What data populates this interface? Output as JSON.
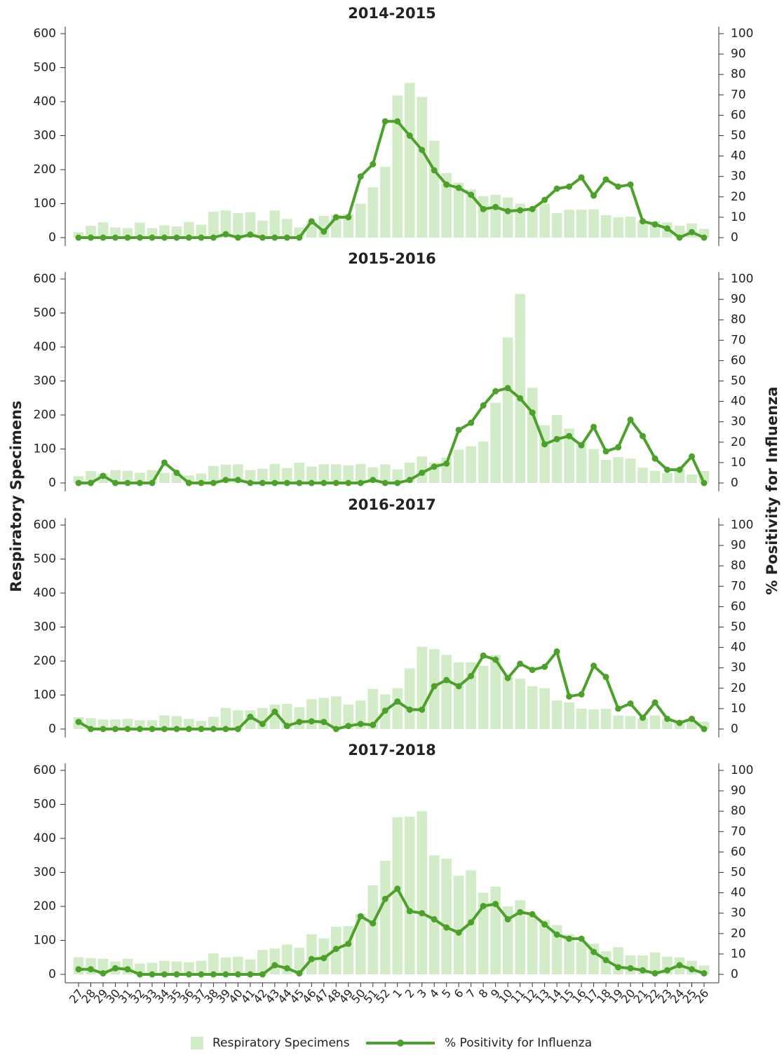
{
  "axis_titles": {
    "y": "Respiratory Specimens",
    "y2": "% Positivity for Influenza"
  },
  "chart_data": [
    {
      "type": "bar-line",
      "title": "2014-2015",
      "ylim": [
        0,
        600
      ],
      "yticks": [
        0,
        100,
        200,
        300,
        400,
        500,
        600
      ],
      "y2lim": [
        0,
        100
      ],
      "y2ticks": [
        0,
        10,
        20,
        30,
        40,
        50,
        60,
        70,
        80,
        90,
        100
      ],
      "series": [
        {
          "type": "bar",
          "color": "#d3ecc8",
          "values": [
            16,
            35,
            45,
            30,
            28,
            44,
            28,
            36,
            33,
            46,
            38,
            76,
            80,
            72,
            75,
            50,
            80,
            55,
            30,
            48,
            64,
            66,
            70,
            100,
            148,
            208,
            418,
            455,
            414,
            285,
            190,
            162,
            142,
            122,
            126,
            118,
            100,
            88,
            100,
            72,
            82,
            82,
            83,
            66,
            60,
            62,
            50,
            48,
            45,
            35,
            42,
            26
          ]
        },
        {
          "type": "line",
          "axis": "y2",
          "color": "#4ca12a",
          "values": [
            0,
            0,
            0,
            0,
            0,
            0,
            0,
            0,
            0,
            0,
            0,
            0,
            1.7,
            0,
            1.5,
            0,
            0,
            0,
            0,
            8,
            3,
            10,
            10,
            30,
            36,
            57,
            57,
            50,
            43,
            33,
            26,
            24.4,
            21,
            14,
            15,
            13,
            13.4,
            14,
            18.5,
            24,
            25,
            29.5,
            20.6,
            28.5,
            25,
            26,
            8,
            6.5,
            4.5,
            0,
            2.7,
            0
          ]
        }
      ]
    },
    {
      "type": "bar-line",
      "title": "2015-2016",
      "ylim": [
        0,
        600
      ],
      "yticks": [
        0,
        100,
        200,
        300,
        400,
        500,
        600
      ],
      "y2lim": [
        0,
        100
      ],
      "y2ticks": [
        0,
        10,
        20,
        30,
        40,
        50,
        60,
        70,
        80,
        90,
        100
      ],
      "series": [
        {
          "type": "bar",
          "color": "#d3ecc8",
          "values": [
            20,
            35,
            28,
            38,
            36,
            30,
            38,
            30,
            30,
            22,
            28,
            50,
            54,
            55,
            38,
            42,
            56,
            44,
            60,
            48,
            55,
            55,
            52,
            56,
            46,
            55,
            40,
            60,
            78,
            60,
            75,
            98,
            108,
            122,
            236,
            428,
            556,
            280,
            170,
            200,
            160,
            120,
            100,
            68,
            76,
            72,
            45,
            36,
            30,
            42,
            25,
            35
          ]
        },
        {
          "type": "line",
          "axis": "y2",
          "color": "#4ca12a",
          "values": [
            0,
            0,
            3.5,
            0,
            0,
            0,
            0,
            10,
            5,
            0,
            0,
            0,
            1.5,
            1.5,
            0,
            0,
            0,
            0,
            0,
            0,
            0,
            0,
            0,
            0,
            1.5,
            0,
            0,
            1.5,
            5,
            8,
            9.5,
            26,
            29.5,
            38,
            45,
            46.5,
            41.5,
            34.5,
            19,
            21.5,
            23,
            18.5,
            27.5,
            15.5,
            17.5,
            31,
            23,
            12,
            6.5,
            6.5,
            13,
            0
          ]
        }
      ]
    },
    {
      "type": "bar-line",
      "title": "2016-2017",
      "ylim": [
        0,
        600
      ],
      "yticks": [
        0,
        100,
        200,
        300,
        400,
        500,
        600
      ],
      "y2lim": [
        0,
        100
      ],
      "y2ticks": [
        0,
        10,
        20,
        30,
        40,
        50,
        60,
        70,
        80,
        90,
        100
      ],
      "series": [
        {
          "type": "bar",
          "color": "#d3ecc8",
          "values": [
            35,
            32,
            28,
            28,
            30,
            26,
            26,
            40,
            38,
            30,
            24,
            36,
            62,
            55,
            55,
            62,
            72,
            74,
            64,
            88,
            92,
            96,
            72,
            84,
            118,
            102,
            120,
            178,
            242,
            235,
            218,
            196,
            196,
            186,
            218,
            158,
            148,
            126,
            120,
            84,
            78,
            60,
            58,
            60,
            40,
            38,
            32,
            40,
            28,
            22,
            24,
            22
          ]
        },
        {
          "type": "line",
          "axis": "y2",
          "color": "#4ca12a",
          "values": [
            3.5,
            0,
            0,
            0,
            0,
            0,
            0,
            0,
            0,
            0,
            0,
            0,
            0,
            0,
            6,
            2.5,
            8.5,
            1.5,
            3.5,
            3.8,
            3.5,
            0,
            1.5,
            2.5,
            2,
            9,
            13.5,
            9.5,
            9.5,
            21,
            24,
            21,
            26,
            36,
            34,
            25,
            32,
            29,
            30.5,
            38,
            16,
            17,
            31,
            25.5,
            10,
            12.5,
            5.5,
            13,
            5,
            3,
            5,
            0
          ]
        }
      ]
    },
    {
      "type": "bar-line",
      "title": "2017-2018",
      "ylim": [
        0,
        600
      ],
      "yticks": [
        0,
        100,
        200,
        300,
        400,
        500,
        600
      ],
      "y2lim": [
        0,
        100
      ],
      "y2ticks": [
        0,
        10,
        20,
        30,
        40,
        50,
        60,
        70,
        80,
        90,
        100
      ],
      "categories": [
        "27",
        "28",
        "29",
        "30",
        "31",
        "32",
        "33",
        "34",
        "35",
        "36",
        "37",
        "38",
        "39",
        "40",
        "41",
        "42",
        "43",
        "44",
        "45",
        "46",
        "47",
        "48",
        "49",
        "50",
        "51",
        "52",
        "1",
        "2",
        "3",
        "4",
        "5",
        "6",
        "7",
        "8",
        "9",
        "10",
        "11",
        "12",
        "13",
        "14",
        "15",
        "16",
        "17",
        "18",
        "19",
        "20",
        "21",
        "22",
        "23",
        "24",
        "25",
        "26"
      ],
      "series": [
        {
          "name": "Respiratory Specimens",
          "type": "bar",
          "color": "#d3ecc8",
          "values": [
            50,
            48,
            46,
            38,
            46,
            32,
            34,
            40,
            38,
            36,
            40,
            62,
            50,
            52,
            44,
            72,
            76,
            88,
            78,
            118,
            106,
            140,
            142,
            178,
            262,
            334,
            462,
            464,
            480,
            350,
            340,
            290,
            306,
            240,
            258,
            200,
            218,
            178,
            160,
            145,
            118,
            96,
            90,
            68,
            80,
            56,
            56,
            65,
            52,
            50,
            40,
            26
          ]
        },
        {
          "name": "% Positivity for Influenza",
          "type": "line",
          "axis": "y2",
          "color": "#4ca12a",
          "values": [
            2.5,
            2.5,
            0.5,
            3,
            2.5,
            0,
            0,
            0,
            0,
            0,
            0,
            0,
            0,
            0,
            0,
            0,
            4.5,
            3,
            0.5,
            7.5,
            8,
            12.5,
            15,
            28.5,
            25,
            37,
            42,
            31,
            30,
            27,
            23,
            20.5,
            25.5,
            33.5,
            34.5,
            27,
            30.5,
            29.5,
            24.5,
            19.5,
            17.5,
            17.5,
            11,
            7,
            3.5,
            3,
            2,
            0.5,
            2,
            4.5,
            2.5,
            0.5
          ]
        }
      ]
    }
  ]
}
